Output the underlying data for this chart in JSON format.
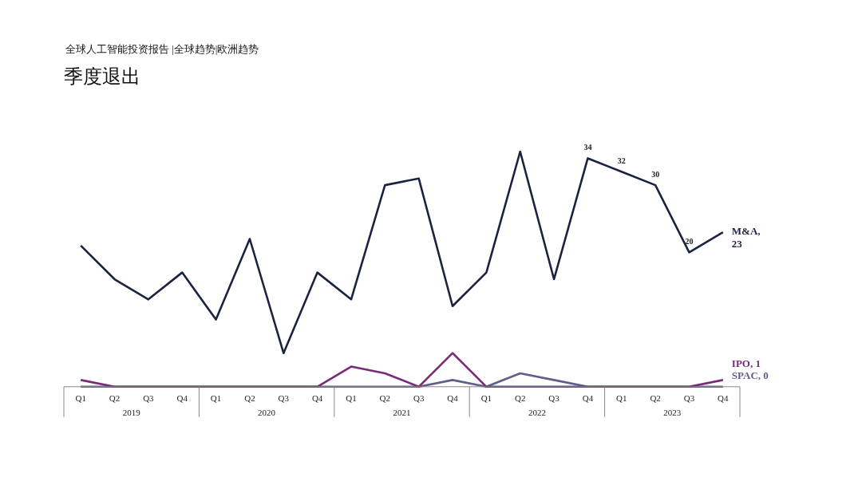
{
  "chart_data": {
    "type": "line",
    "subtitle": "全球人工智能投资报告 |全球趋势|欧洲趋势",
    "title": "季度退出",
    "categories": [
      "Q1",
      "Q2",
      "Q3",
      "Q4",
      "Q1",
      "Q2",
      "Q3",
      "Q4",
      "Q1",
      "Q2",
      "Q3",
      "Q4",
      "Q1",
      "Q2",
      "Q3",
      "Q4",
      "Q1",
      "Q2",
      "Q3",
      "Q4"
    ],
    "annotations": [
      "2019",
      "2020",
      "2021",
      "2022",
      "2023"
    ],
    "tick_labels": "x",
    "grid": false,
    "legend": false,
    "marker": "none",
    "series": [
      {
        "name": "M&A, 23",
        "color": "#1c2340",
        "values": [
          21,
          16,
          13,
          17,
          10,
          22,
          5,
          17,
          13,
          30,
          31,
          12,
          17,
          35,
          16,
          34,
          32,
          30,
          20,
          23
        ],
        "value_labels": [
          null,
          null,
          null,
          null,
          null,
          null,
          null,
          null,
          null,
          null,
          null,
          null,
          null,
          null,
          null,
          "34",
          "32",
          "30",
          "20",
          null
        ]
      },
      {
        "name": "IPO, 1",
        "color": "#7a2a78",
        "values": [
          1,
          0,
          0,
          0,
          0,
          0,
          0,
          0,
          3,
          2,
          0,
          5,
          0,
          0,
          0,
          0,
          0,
          0,
          0,
          1
        ]
      },
      {
        "name": "SPAC, 0",
        "color": "#5f5f8a",
        "values": [
          0,
          0,
          0,
          0,
          0,
          0,
          0,
          0,
          0,
          0,
          0,
          1,
          0,
          2,
          1,
          0,
          0,
          0,
          0,
          0
        ]
      }
    ]
  }
}
